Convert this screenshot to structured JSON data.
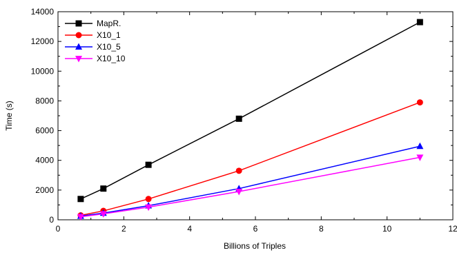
{
  "chart_data": {
    "type": "line",
    "title": "",
    "xlabel": "Billions of Triples",
    "ylabel": "Time (s)",
    "xlim": [
      0,
      12
    ],
    "ylim": [
      0,
      14000
    ],
    "x_ticks": [
      0,
      2,
      4,
      6,
      8,
      10,
      12
    ],
    "y_ticks": [
      0,
      2000,
      4000,
      6000,
      8000,
      10000,
      12000,
      14000
    ],
    "x_tick_labels": [
      "0",
      "2",
      "4",
      "6",
      "8",
      "10",
      "12"
    ],
    "y_tick_labels": [
      "0",
      "2000",
      "4000",
      "6000",
      "8000",
      "10000",
      "12000",
      "14000"
    ],
    "grid": false,
    "legend_position": "top-left",
    "x": [
      0.69,
      1.38,
      2.75,
      5.5,
      11.0
    ],
    "series": [
      {
        "name": "MapR.",
        "color": "#000000",
        "marker": "square",
        "values": [
          1400,
          2100,
          3700,
          6800,
          13300
        ]
      },
      {
        "name": "X10_1",
        "color": "#ff0000",
        "marker": "circle",
        "values": [
          300,
          600,
          1400,
          3300,
          7900
        ]
      },
      {
        "name": "X10_5",
        "color": "#0000ff",
        "marker": "triangle-up",
        "values": [
          250,
          450,
          950,
          2100,
          4950
        ]
      },
      {
        "name": "X10_10",
        "color": "#ff00ff",
        "marker": "triangle-down",
        "values": [
          200,
          400,
          850,
          1900,
          4200
        ]
      }
    ]
  }
}
